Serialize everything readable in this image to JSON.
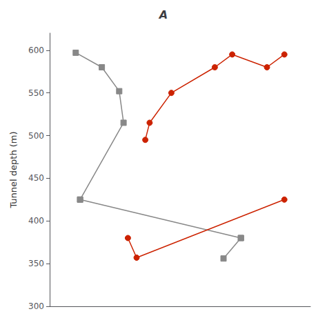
{
  "chart_data": {
    "type": "line",
    "title": "A",
    "ylabel": "Tunnel depth (m)",
    "xlim": [
      0,
      30
    ],
    "xticks": [],
    "ylim": [
      300,
      620
    ],
    "yticks": [
      300,
      350,
      400,
      450,
      500,
      550,
      600
    ],
    "grid": false,
    "tick_labels": "y",
    "series": [
      {
        "color": "#888888",
        "marker": "square",
        "x": [
          3,
          6,
          8,
          8.5,
          3.5
        ],
        "values": [
          597,
          580,
          552,
          515,
          425
        ]
      },
      {
        "color": "#888888",
        "marker": "square",
        "x": [
          3.5,
          22
        ],
        "values": [
          425,
          380
        ]
      },
      {
        "color": "#888888",
        "marker": "square",
        "x": [
          22,
          20
        ],
        "values": [
          380,
          356
        ]
      },
      {
        "color": "#cc2200",
        "marker": "circle",
        "x": [
          11,
          11.5,
          14,
          19,
          21,
          25,
          27
        ],
        "values": [
          495,
          515,
          550,
          580,
          595,
          580,
          595
        ]
      },
      {
        "color": "#cc2200",
        "marker": "circle",
        "x": [
          9,
          10,
          27
        ],
        "values": [
          380,
          357,
          425
        ]
      }
    ]
  }
}
